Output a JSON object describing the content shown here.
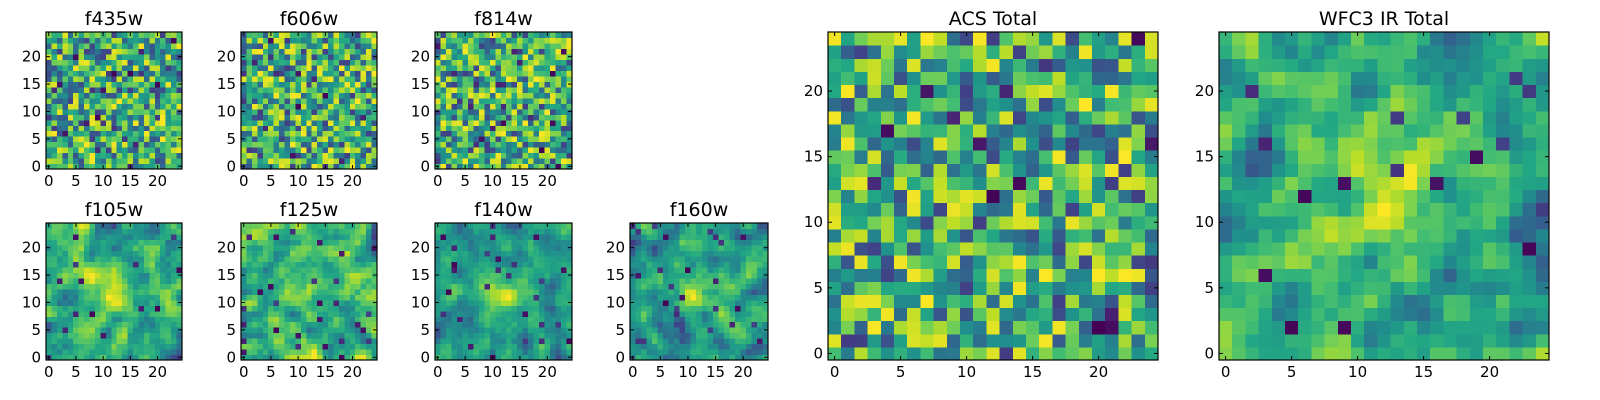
{
  "chart_data": [
    {
      "type": "heatmap",
      "title": "f435w",
      "grid_size": 25,
      "xticks": [
        "0",
        "5",
        "10",
        "15",
        "20"
      ],
      "yticks": [
        "0",
        "5",
        "10",
        "15",
        "20"
      ],
      "xlim": [
        0,
        25
      ],
      "ylim": [
        0,
        25
      ],
      "colormap": "viridis",
      "texture": "pixel-noise",
      "seed": 11
    },
    {
      "type": "heatmap",
      "title": "f606w",
      "grid_size": 25,
      "xticks": [
        "0",
        "5",
        "10",
        "15",
        "20"
      ],
      "yticks": [
        "0",
        "5",
        "10",
        "15",
        "20"
      ],
      "xlim": [
        0,
        25
      ],
      "ylim": [
        0,
        25
      ],
      "colormap": "viridis",
      "texture": "pixel-noise",
      "seed": 23
    },
    {
      "type": "heatmap",
      "title": "f814w",
      "grid_size": 25,
      "xticks": [
        "0",
        "5",
        "10",
        "15",
        "20"
      ],
      "yticks": [
        "0",
        "5",
        "10",
        "15",
        "20"
      ],
      "xlim": [
        0,
        25
      ],
      "ylim": [
        0,
        25
      ],
      "colormap": "viridis",
      "texture": "pixel-noise",
      "seed": 37
    },
    {
      "type": "heatmap",
      "title": "f105w",
      "grid_size": 25,
      "xticks": [
        "0",
        "5",
        "10",
        "15",
        "20"
      ],
      "yticks": [
        "0",
        "5",
        "10",
        "15",
        "20"
      ],
      "xlim": [
        0,
        25
      ],
      "ylim": [
        0,
        25
      ],
      "colormap": "viridis",
      "texture": "correlated-with-central-source",
      "seed": 41
    },
    {
      "type": "heatmap",
      "title": "f125w",
      "grid_size": 25,
      "xticks": [
        "0",
        "5",
        "10",
        "15",
        "20"
      ],
      "yticks": [
        "0",
        "5",
        "10",
        "15",
        "20"
      ],
      "xlim": [
        0,
        25
      ],
      "ylim": [
        0,
        25
      ],
      "colormap": "viridis",
      "texture": "correlated",
      "seed": 53
    },
    {
      "type": "heatmap",
      "title": "f140w",
      "grid_size": 25,
      "xticks": [
        "0",
        "5",
        "10",
        "15",
        "20"
      ],
      "yticks": [
        "0",
        "5",
        "10",
        "15",
        "20"
      ],
      "xlim": [
        0,
        25
      ],
      "ylim": [
        0,
        25
      ],
      "colormap": "viridis",
      "texture": "correlated-with-central-source",
      "seed": 67
    },
    {
      "type": "heatmap",
      "title": "f160w",
      "grid_size": 25,
      "xticks": [
        "0",
        "5",
        "10",
        "15",
        "20"
      ],
      "yticks": [
        "0",
        "5",
        "10",
        "15",
        "20"
      ],
      "xlim": [
        0,
        25
      ],
      "ylim": [
        0,
        25
      ],
      "colormap": "viridis",
      "texture": "correlated-with-central-source",
      "seed": 79
    },
    {
      "type": "heatmap",
      "title": "ACS Total",
      "grid_size": 25,
      "xticks": [
        "0",
        "5",
        "10",
        "15",
        "20"
      ],
      "yticks": [
        "0",
        "5",
        "10",
        "15",
        "20"
      ],
      "xlim": [
        0,
        25
      ],
      "ylim": [
        0,
        25
      ],
      "colormap": "viridis",
      "texture": "pixel-noise",
      "seed": 97
    },
    {
      "type": "heatmap",
      "title": "WFC3 IR Total",
      "grid_size": 25,
      "xticks": [
        "0",
        "5",
        "10",
        "15",
        "20"
      ],
      "yticks": [
        "0",
        "5",
        "10",
        "15",
        "20"
      ],
      "xlim": [
        0,
        25
      ],
      "ylim": [
        0,
        25
      ],
      "colormap": "viridis",
      "texture": "correlated-with-central-source",
      "seed": 113
    }
  ]
}
